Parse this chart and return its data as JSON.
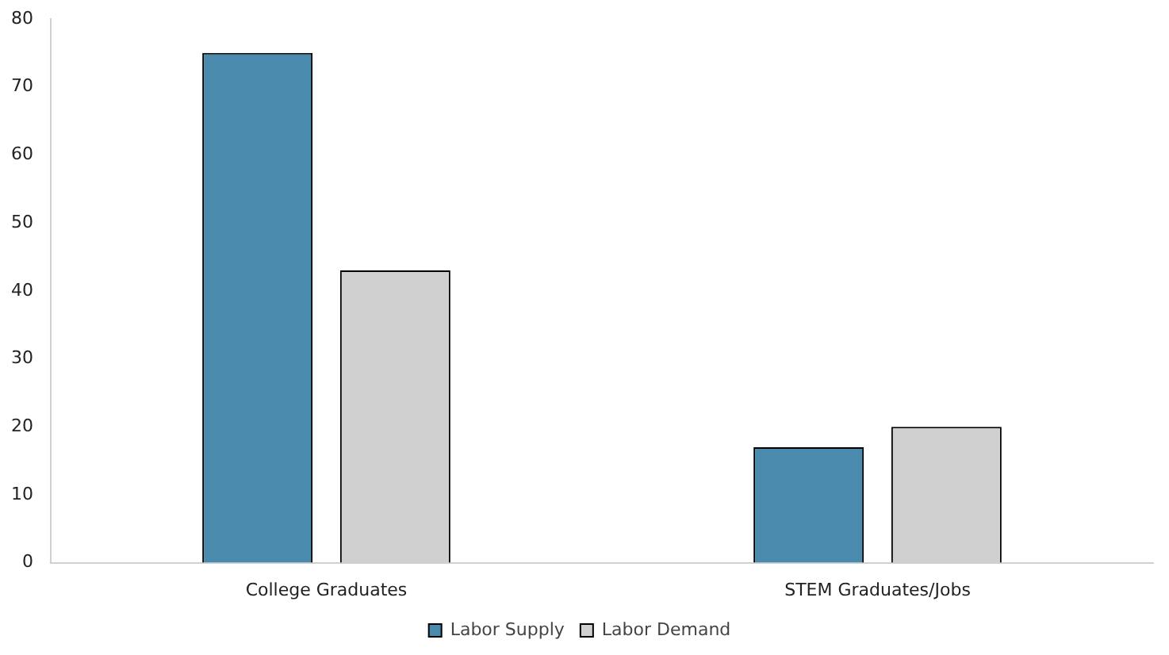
{
  "chart_data": {
    "type": "bar",
    "categories": [
      "College Graduates",
      "STEM Graduates/Jobs"
    ],
    "series": [
      {
        "name": "Labor Supply",
        "color": "#4a8bad",
        "values": [
          75,
          17
        ]
      },
      {
        "name": "Labor Demand",
        "color": "#d0d0d0",
        "values": [
          43,
          20
        ]
      }
    ],
    "ylim": [
      0,
      80
    ],
    "yticks": [
      0,
      10,
      20,
      30,
      40,
      50,
      60,
      70,
      80
    ],
    "grid": false,
    "legend": "bottom"
  }
}
